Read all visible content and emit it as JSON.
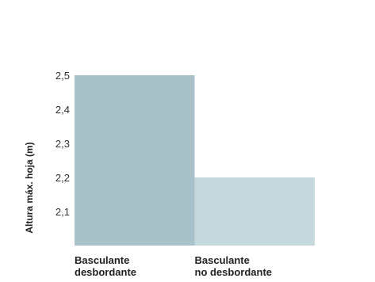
{
  "chart_data": {
    "type": "bar",
    "categories": [
      [
        "Basculante",
        "desbordante"
      ],
      [
        "Basculante",
        "no desbordante"
      ]
    ],
    "values": [
      2.5,
      2.2
    ],
    "colors": [
      "#a9c2ca",
      "#c5d8dc"
    ],
    "ylabel": "Altura máx. hoja (m)",
    "yticks": [
      "2,1",
      "2,2",
      "2,3",
      "2,4",
      "2,5"
    ],
    "ytick_values": [
      2.1,
      2.2,
      2.3,
      2.4,
      2.5
    ],
    "ylim": [
      2.0,
      2.5
    ],
    "grid": false,
    "legend": "none"
  }
}
